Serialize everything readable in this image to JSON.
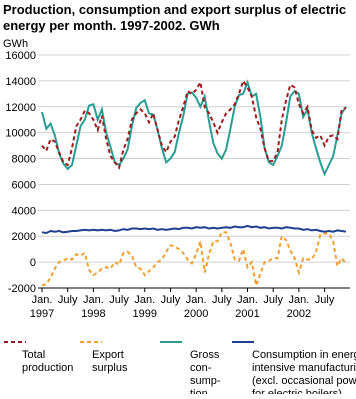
{
  "chart_data": {
    "type": "line",
    "title": "Production, consumption and export surplus of electric energy per month. 1997-2002. GWh",
    "y_unit": "GWh",
    "categories": [
      "Jan.",
      null,
      null,
      null,
      null,
      null,
      "July",
      null,
      null,
      null,
      null,
      null,
      "Jan.",
      null,
      null,
      null,
      null,
      null,
      "July",
      null,
      null,
      null,
      null,
      null,
      "Jan.",
      null,
      null,
      null,
      null,
      null,
      "July",
      null,
      null,
      null,
      null,
      null,
      "Jan.",
      null,
      null,
      null,
      null,
      null,
      "July",
      null,
      null,
      null,
      null,
      null,
      "Jan.",
      null,
      null,
      null,
      null,
      null,
      "July",
      null,
      null,
      null,
      null,
      null,
      "Jan.",
      null,
      null,
      null,
      null,
      null,
      "July",
      null,
      null,
      null,
      null,
      null
    ],
    "year_labels": [
      "1997",
      "1998",
      "1999",
      "2000",
      "2001",
      "2002"
    ],
    "ylim": [
      -2000,
      16000
    ],
    "yticks": [
      -2000,
      0,
      2000,
      4000,
      6000,
      8000,
      10000,
      12000,
      14000,
      16000
    ],
    "grid": true,
    "series": [
      {
        "name": "Total\nproduction",
        "color": "#9b1b1e",
        "dash": true,
        "values": [
          9000,
          8600,
          9500,
          9300,
          8500,
          7700,
          7500,
          8800,
          10500,
          11000,
          11700,
          11500,
          11000,
          10200,
          11300,
          9500,
          8200,
          7700,
          7300,
          8700,
          9500,
          11000,
          11500,
          11800,
          11500,
          10800,
          11500,
          10200,
          9000,
          8500,
          9300,
          9700,
          11000,
          12000,
          13200,
          13000,
          13300,
          13900,
          12000,
          11500,
          10800,
          10000,
          10800,
          11500,
          11800,
          12200,
          13000,
          14000,
          13500,
          12800,
          11200,
          10300,
          8800,
          7800,
          7800,
          8500,
          11000,
          12500,
          13700,
          13500,
          12200,
          11500,
          12000,
          10200,
          9600,
          9800,
          9000,
          9700,
          9800,
          9500,
          11800,
          11900
        ]
      },
      {
        "name": "Export\nsurplus",
        "color": "#f0a030",
        "dash": true,
        "values": [
          -1800,
          -1700,
          -1200,
          -500,
          0,
          100,
          300,
          200,
          600,
          500,
          700,
          -600,
          -1000,
          -800,
          -500,
          -400,
          -500,
          0,
          -200,
          700,
          800,
          500,
          -400,
          -500,
          -1000,
          -700,
          -400,
          0,
          200,
          800,
          1300,
          1200,
          1000,
          700,
          200,
          -100,
          600,
          1600,
          -800,
          600,
          1600,
          1600,
          2300,
          2300,
          1500,
          200,
          100,
          1000,
          -400,
          0,
          -1800,
          -900,
          0,
          100,
          300,
          300,
          2000,
          1700,
          900,
          300,
          -800,
          300,
          200,
          200,
          800,
          2100,
          2200,
          2200,
          1600,
          -300,
          300,
          -100
        ]
      },
      {
        "name": "Gross\ncon-\nsump-\ntion",
        "color": "#2a9d94",
        "dash": false,
        "values": [
          11600,
          10300,
          10700,
          9800,
          8400,
          7600,
          7200,
          7500,
          9000,
          10500,
          11000,
          12100,
          12200,
          11000,
          11800,
          10000,
          8900,
          7700,
          7500,
          8000,
          8700,
          10500,
          11900,
          12300,
          12500,
          11500,
          11400,
          10200,
          8800,
          7700,
          8000,
          8500,
          10000,
          11300,
          13000,
          13100,
          12700,
          12000,
          12800,
          10900,
          9200,
          8400,
          8000,
          8700,
          10300,
          12000,
          12900,
          13000,
          13900,
          12800,
          13000,
          11200,
          8800,
          7700,
          7500,
          8200,
          9000,
          10800,
          12800,
          13200,
          13000,
          11200,
          11800,
          10000,
          8800,
          7700,
          6800,
          7500,
          8200,
          9800,
          11500,
          12000
        ]
      },
      {
        "name": "Consumption in energy-\nintensive manufacturing\n(excl. occasional power\nfor electric boilers)",
        "color": "#1f3f8f",
        "dash": false,
        "values": [
          2300,
          2250,
          2400,
          2350,
          2400,
          2300,
          2350,
          2400,
          2400,
          2450,
          2500,
          2450,
          2500,
          2450,
          2500,
          2450,
          2500,
          2400,
          2450,
          2550,
          2500,
          2600,
          2600,
          2550,
          2600,
          2550,
          2600,
          2500,
          2550,
          2500,
          2550,
          2600,
          2550,
          2650,
          2650,
          2600,
          2700,
          2650,
          2700,
          2600,
          2650,
          2600,
          2650,
          2700,
          2650,
          2750,
          2700,
          2700,
          2800,
          2700,
          2750,
          2650,
          2700,
          2600,
          2650,
          2650,
          2600,
          2700,
          2650,
          2600,
          2600,
          2500,
          2550,
          2450,
          2500,
          2400,
          2350,
          2400,
          2350,
          2450,
          2400,
          2350
        ]
      }
    ]
  }
}
